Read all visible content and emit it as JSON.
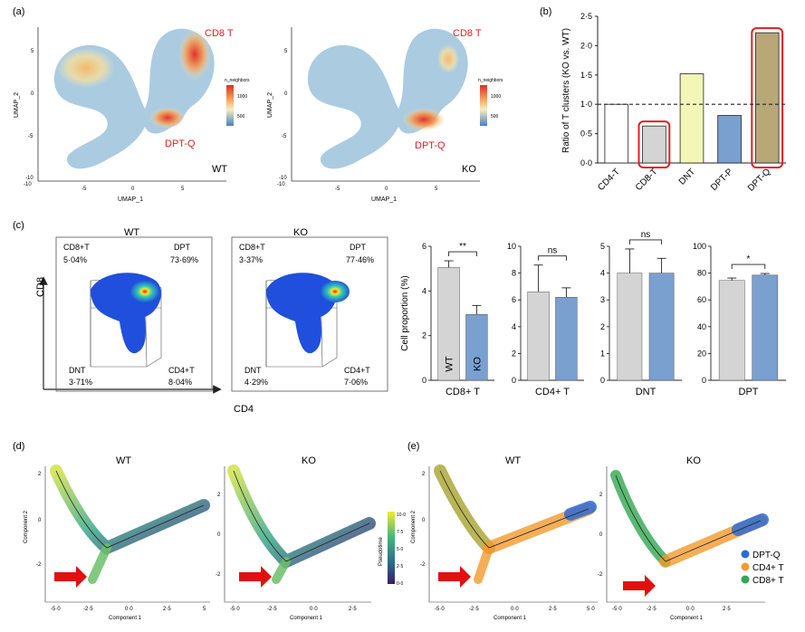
{
  "panel_labels": {
    "a": "(a)",
    "b": "(b)",
    "c": "(c)",
    "d": "(d)",
    "e": "(e)"
  },
  "colors": {
    "red": "#e02020",
    "grey": "#d4d4d4",
    "blue": "#7aa0d0",
    "yellow": "#f2f7b8",
    "olive": "#b8a877",
    "white": "#ffffff"
  },
  "panel_a": {
    "plots": [
      {
        "condition": "WT",
        "xlabel": "UMAP_1",
        "ylabel": "UMAP_2",
        "legend_title": "n_neighbors",
        "legend_ticks": [
          "1000",
          "500"
        ],
        "labels": {
          "cd8": "CD8 T",
          "dptq": "DPT-Q"
        }
      },
      {
        "condition": "KO",
        "xlabel": "UMAP_1",
        "ylabel": "UMAP_2",
        "legend_title": "n_neighbors",
        "legend_ticks": [
          "1000",
          "500"
        ],
        "labels": {
          "cd8": "CD8 T",
          "dptq": "DPT-Q"
        }
      }
    ],
    "xticks": [
      "-10",
      "-5",
      "0",
      "5"
    ],
    "yticks": [
      "5",
      "0",
      "-5",
      "-10"
    ]
  },
  "panel_c_flow": {
    "axis_y": "CD8",
    "axis_x": "CD4",
    "plots": [
      {
        "title": "WT",
        "q_cd8": "CD8+T",
        "v_cd8": "5·04%",
        "q_dpt": "DPT",
        "v_dpt": "73·69%",
        "q_dnt": "DNT",
        "v_dnt": "3·71%",
        "q_cd4": "CD4+T",
        "v_cd4": "8·04%"
      },
      {
        "title": "KO",
        "q_cd8": "CD8+T",
        "v_cd8": "3·37%",
        "q_dpt": "DPT",
        "v_dpt": "77·46%",
        "q_dnt": "DNT",
        "v_dnt": "4·29%",
        "q_cd4": "CD4+T",
        "v_cd4": "7·06%"
      }
    ]
  },
  "panel_de": {
    "d_titles": [
      "WT",
      "KO"
    ],
    "e_titles": [
      "WT",
      "KO"
    ],
    "xlabel": "Component 1",
    "ylabel": "Component 2",
    "xticks": [
      "-5·0",
      "-2·5",
      "0·0",
      "2·5",
      "5"
    ],
    "xticks_e": [
      "-5·0",
      "-2·5",
      "0·0",
      "2·5",
      "5·0"
    ],
    "yticks": [
      "2",
      "0",
      "-2"
    ],
    "pseudotime_label": "Pseudotime",
    "pseudotime_ticks": [
      "10·0",
      "7·5",
      "5·0",
      "2·5",
      "0·0"
    ],
    "e_legend": [
      {
        "label": "DPT-Q",
        "color": "#2a6bd6"
      },
      {
        "label": "CD4+ T",
        "color": "#f29a2e"
      },
      {
        "label": "CD8+ T",
        "color": "#2fa84f"
      }
    ]
  },
  "chart_data": [
    {
      "id": "b",
      "type": "bar",
      "categories": [
        "CD4-T",
        "CD8-T",
        "DNT",
        "DPT-P",
        "DPT-Q"
      ],
      "values": [
        1.0,
        0.63,
        1.52,
        0.81,
        2.22
      ],
      "ylabel": "Ratio of T clusters (KO vs. WT)",
      "ylim": [
        0,
        2.5
      ],
      "yticks": [
        "0·0",
        "0·5",
        "1·0",
        "1·5",
        "2·0",
        "2·5"
      ],
      "reference_line": 1.0,
      "highlighted": [
        "CD8-T",
        "DPT-Q"
      ]
    },
    {
      "id": "c1",
      "type": "bar",
      "xlabel": "CD8+ T",
      "ylabel": "Cell proportion (%)",
      "categories": [
        "WT",
        "KO"
      ],
      "values": [
        5.05,
        2.95
      ],
      "errors": [
        0.3,
        0.4
      ],
      "ylim": [
        0,
        6
      ],
      "yticks": [
        "0",
        "2",
        "4",
        "6"
      ],
      "significance": "**",
      "bar_labels": [
        "WT",
        "KO"
      ]
    },
    {
      "id": "c2",
      "type": "bar",
      "xlabel": "CD4+ T",
      "categories": [
        "WT",
        "KO"
      ],
      "values": [
        6.6,
        6.2
      ],
      "errors": [
        2.0,
        0.7
      ],
      "ylim": [
        0,
        10
      ],
      "yticks": [
        "0",
        "2",
        "4",
        "6",
        "8",
        "10"
      ],
      "significance": "ns"
    },
    {
      "id": "c3",
      "type": "bar",
      "xlabel": "DNT",
      "categories": [
        "WT",
        "KO"
      ],
      "values": [
        4.0,
        4.0
      ],
      "errors": [
        0.9,
        0.55
      ],
      "ylim": [
        0,
        5
      ],
      "yticks": [
        "0",
        "1",
        "2",
        "3",
        "4",
        "5"
      ],
      "significance": "ns"
    },
    {
      "id": "c4",
      "type": "bar",
      "xlabel": "DPT",
      "categories": [
        "WT",
        "KO"
      ],
      "values": [
        74.5,
        78.5
      ],
      "errors": [
        1.8,
        1.2
      ],
      "ylim": [
        0,
        100
      ],
      "yticks": [
        "0",
        "20",
        "40",
        "60",
        "80",
        "100"
      ],
      "significance": "*"
    }
  ]
}
